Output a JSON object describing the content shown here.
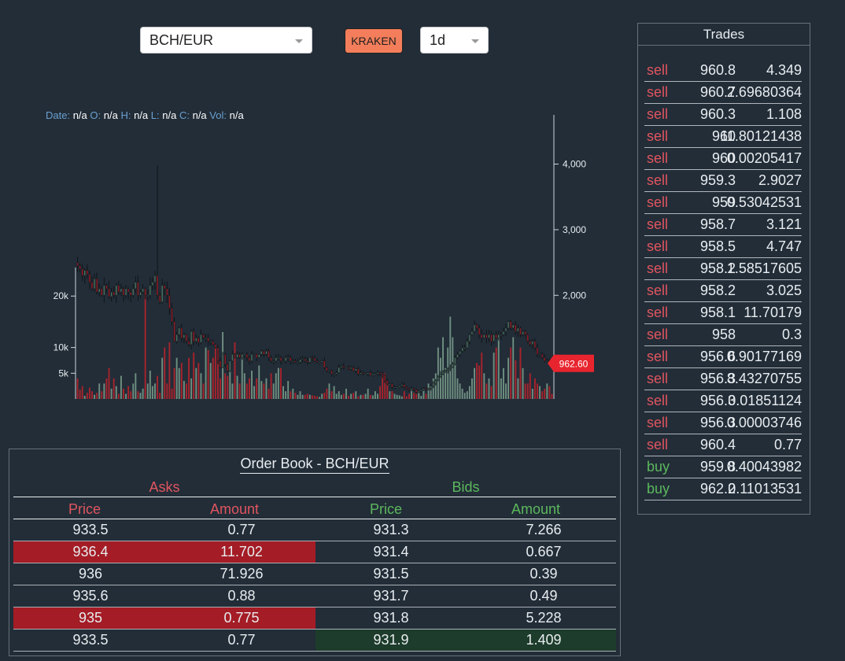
{
  "toolbar": {
    "pair": "BCH/EUR",
    "exchange": "KRAKEN",
    "interval": "1d"
  },
  "readout": {
    "date_label": "Date:",
    "date": "n/a",
    "open_label": "O:",
    "open": "n/a",
    "high_label": "H:",
    "high": "n/a",
    "low_label": "L:",
    "low": "n/a",
    "close_label": "C:",
    "close": "n/a",
    "vol_label": "Vol:",
    "vol": "n/a"
  },
  "chart_data": {
    "type": "candlestick",
    "price_axis": {
      "ticks": [
        "4,000",
        "3,000",
        "2,000"
      ],
      "tick_values": [
        4000,
        3000,
        2000
      ],
      "range": [
        420,
        4750
      ]
    },
    "volume_axis": {
      "ticks": [
        "20k",
        "10k",
        "5k"
      ],
      "tick_values": [
        20000,
        10000,
        5000
      ],
      "range": [
        0,
        26000
      ]
    },
    "last_price": "962.60",
    "last_price_value": 962.6,
    "close_series": [
      2450,
      2400,
      2300,
      2380,
      2320,
      2200,
      2100,
      2250,
      2050,
      2100,
      2000,
      2150,
      2100,
      1980,
      2050,
      2000,
      2150,
      2050,
      2100,
      2000,
      2100,
      2050,
      2000,
      2100,
      2200,
      2000,
      2050,
      2100,
      2000,
      2000,
      2150,
      2200,
      2300,
      2000,
      1900,
      2150,
      2100,
      2000,
      1800,
      1600,
      1300,
      1400,
      1500,
      1350,
      1400,
      1300,
      1250,
      1450,
      1300,
      1350,
      1280,
      1400,
      1350,
      1350,
      1300,
      1300,
      1250,
      1200,
      1000,
      900,
      1100,
      950,
      850,
      1000,
      1100,
      1050,
      1100,
      1050,
      1100,
      1100,
      1050,
      1000,
      1100,
      1100,
      1050,
      1100,
      1150,
      1100,
      1150,
      1050,
      1000,
      1000,
      1050,
      1050,
      1000,
      1000,
      1050,
      1050,
      1000,
      1000,
      980,
      980,
      1020,
      1030,
      1000,
      980,
      1050,
      1040,
      1000,
      980,
      980,
      1000,
      900,
      850,
      850,
      800,
      800,
      820,
      900,
      920,
      900,
      900,
      880,
      900,
      850,
      880,
      800,
      820,
      800,
      800,
      820,
      780,
      800,
      800,
      820,
      800,
      780,
      700,
      650,
      650,
      600,
      600,
      600,
      620,
      640,
      600,
      580,
      560,
      580,
      560,
      520,
      540,
      560,
      580,
      560,
      580,
      620,
      660,
      700,
      760,
      800,
      840,
      860,
      880,
      900,
      950,
      1050,
      1100,
      1150,
      1200,
      1200,
      1300,
      1400,
      1450,
      1550,
      1500,
      1400,
      1350,
      1400,
      1350,
      1400,
      1300,
      1400,
      1350,
      1400,
      1400,
      1450,
      1500,
      1600,
      1500,
      1550,
      1450,
      1500,
      1400,
      1450,
      1400,
      1300,
      1250,
      1300,
      1200,
      1100,
      1100,
      1050,
      1000,
      1000,
      980,
      962.6
    ],
    "volume_series": [
      4000,
      1800,
      2500,
      600,
      1200,
      2200,
      1500,
      800,
      1200,
      3000,
      1500,
      3000,
      4000,
      6000,
      2000,
      4000,
      2500,
      1000,
      4500,
      2000,
      1000,
      2500,
      1500,
      3000,
      5000,
      1500,
      1200,
      2000,
      21000,
      3000,
      5500,
      2500,
      3000,
      4500,
      1200,
      8000,
      10000,
      3000,
      11000,
      2000,
      6000,
      8000,
      6000,
      7000,
      3500,
      3000,
      8000,
      4000,
      9000,
      6000,
      7000,
      5000,
      3000,
      10000,
      9500,
      7000,
      8000,
      10000,
      9000,
      4000,
      13000,
      5000,
      4500,
      7000,
      3000,
      11000,
      4500,
      3000,
      8000,
      5000,
      3000,
      4000,
      5500,
      2500,
      4000,
      6500,
      3500,
      3000,
      4000,
      2000,
      5000,
      3000,
      5000,
      6000,
      6000,
      2500,
      1500,
      3500,
      1500,
      2000,
      1200,
      800,
      1500,
      800,
      800,
      1000,
      800,
      700,
      600,
      500,
      400,
      1000,
      1200,
      2000,
      3000,
      1500,
      2500,
      1000,
      1500,
      800,
      1000,
      2000,
      600,
      1000,
      1200,
      1500,
      500,
      800,
      800,
      1000,
      2000,
      800,
      700,
      1500,
      1000,
      2500,
      5000,
      5000,
      3000,
      1500,
      1500,
      1000,
      800,
      700,
      500,
      1500,
      500,
      1000,
      2000,
      1200,
      1000,
      1500,
      600,
      2000,
      1000,
      3000,
      2500,
      4000,
      5000,
      10000,
      8000,
      12000,
      6000,
      10000,
      16000,
      12000,
      8000,
      4000,
      3000,
      2000,
      1200,
      1500,
      2500,
      4000,
      6000,
      7000,
      6500,
      9000,
      5000,
      3000,
      4000,
      2500,
      9000,
      10000,
      12000,
      4000,
      6000,
      3000,
      8000,
      10000,
      12000,
      7500,
      4000,
      10000,
      6000,
      3000,
      3000,
      5000,
      2000,
      4000,
      3000,
      2500,
      1500,
      2000,
      3000,
      2500,
      1000
    ]
  },
  "trades": {
    "title": "Trades",
    "rows": [
      {
        "side": "sell",
        "price": "960.8",
        "amount": "4.349"
      },
      {
        "side": "sell",
        "price": "960.7",
        "amount": "2.69680364"
      },
      {
        "side": "sell",
        "price": "960.3",
        "amount": "1.108"
      },
      {
        "side": "sell",
        "price": "960",
        "amount": "11.80121438"
      },
      {
        "side": "sell",
        "price": "960",
        "amount": "0.00205417"
      },
      {
        "side": "sell",
        "price": "959.3",
        "amount": "2.9027"
      },
      {
        "side": "sell",
        "price": "959",
        "amount": "0.53042531"
      },
      {
        "side": "sell",
        "price": "958.7",
        "amount": "3.121"
      },
      {
        "side": "sell",
        "price": "958.5",
        "amount": "4.747"
      },
      {
        "side": "sell",
        "price": "958.2",
        "amount": "1.58517605"
      },
      {
        "side": "sell",
        "price": "958.2",
        "amount": "3.025"
      },
      {
        "side": "sell",
        "price": "958.1",
        "amount": "11.70179"
      },
      {
        "side": "sell",
        "price": "958",
        "amount": "0.3"
      },
      {
        "side": "sell",
        "price": "956.6",
        "amount": "0.90177169"
      },
      {
        "side": "sell",
        "price": "956.3",
        "amount": "8.43270755"
      },
      {
        "side": "sell",
        "price": "956.3",
        "amount": "0.01851124"
      },
      {
        "side": "sell",
        "price": "956.3",
        "amount": "0.00003746"
      },
      {
        "side": "sell",
        "price": "960.4",
        "amount": "0.77"
      },
      {
        "side": "buy",
        "price": "959.8",
        "amount": "0.40043982"
      },
      {
        "side": "buy",
        "price": "962.2",
        "amount": "0.11013531"
      }
    ]
  },
  "orderbook": {
    "title": "Order Book - BCH/EUR",
    "asks_label": "Asks",
    "bids_label": "Bids",
    "price_header": "Price",
    "amount_header": "Amount",
    "rows": [
      {
        "ask_price": "933.5",
        "ask_amount": "0.77",
        "ask_highlight": false,
        "bid_price": "931.3",
        "bid_amount": "7.266",
        "bid_highlight": false
      },
      {
        "ask_price": "936.4",
        "ask_amount": "11.702",
        "ask_highlight": true,
        "bid_price": "931.4",
        "bid_amount": "0.667",
        "bid_highlight": false
      },
      {
        "ask_price": "936",
        "ask_amount": "71.926",
        "ask_highlight": false,
        "bid_price": "931.5",
        "bid_amount": "0.39",
        "bid_highlight": false
      },
      {
        "ask_price": "935.6",
        "ask_amount": "0.88",
        "ask_highlight": false,
        "bid_price": "931.7",
        "bid_amount": "0.49",
        "bid_highlight": false
      },
      {
        "ask_price": "935",
        "ask_amount": "0.775",
        "ask_highlight": true,
        "bid_price": "931.8",
        "bid_amount": "5.228",
        "bid_highlight": false
      },
      {
        "ask_price": "933.5",
        "ask_amount": "0.77",
        "ask_highlight": false,
        "bid_price": "931.9",
        "bid_amount": "1.409",
        "bid_highlight": true
      }
    ]
  },
  "colors": {
    "background": "#222d38",
    "sell": "#e0555f",
    "buy": "#5cb85c",
    "ask_highlight": "#a41c25",
    "bid_highlight": "#1d3c2b",
    "exchange_button": "#f47e5b",
    "last_price_badge": "#e8252e",
    "candle_up": "#4b7060",
    "candle_down": "#8e1c25",
    "volume_up": "#6f8f80",
    "volume_down": "#a8232c"
  }
}
